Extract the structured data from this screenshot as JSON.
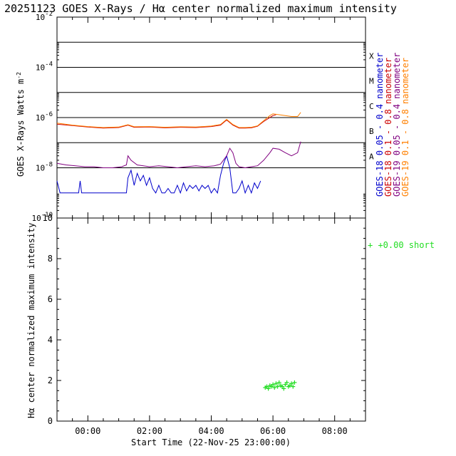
{
  "title": "20251123 GOES X-Rays / Hα center normalized maximum intensity",
  "chart_data": [
    {
      "type": "line",
      "panel": "top",
      "yscale": "log",
      "ylabel_main": "GOES X-Rays Watts m",
      "ylabel_sup": "-2",
      "ylim": [
        1e-10,
        0.01
      ],
      "yticks": [
        {
          "base": "10",
          "exp": "-10",
          "value": 1e-10
        },
        {
          "base": "10",
          "exp": "-8",
          "value": 1e-08
        },
        {
          "base": "10",
          "exp": "-6",
          "value": 1e-06
        },
        {
          "base": "10",
          "exp": "-4",
          "value": 0.0001
        },
        {
          "base": "10",
          "exp": "-2",
          "value": 0.01
        }
      ],
      "flare_levels": [
        {
          "label": "A",
          "value": 1e-08
        },
        {
          "label": "B",
          "value": 1e-07
        },
        {
          "label": "C",
          "value": 1e-06
        },
        {
          "label": "M",
          "value": 1e-05
        },
        {
          "label": "X",
          "value": 0.0001
        }
      ],
      "extra_lines": [
        0.001
      ],
      "legend": [
        {
          "label": "GOES-18  0.05 - 0.4 nanometer",
          "color": "#0000cc"
        },
        {
          "label": "GOES-18  0.1 - 0.8 nanometer",
          "color": "#cc0000"
        },
        {
          "label": "GOES-19  0.05 - 0.4 nanometer",
          "color": "#800080"
        },
        {
          "label": "GOES-19  0.1 - 0.8 nanometer",
          "color": "#ff8000"
        }
      ],
      "series": [
        {
          "name": "GOES-18 0.05-0.4 nm",
          "color": "#0000cc",
          "x": [
            -1.0,
            -0.9,
            -0.3,
            -0.25,
            -0.2,
            -0.1,
            0.5,
            1.0,
            1.1,
            1.2,
            1.25,
            1.3,
            1.4,
            1.5,
            1.6,
            1.7,
            1.8,
            1.9,
            2.0,
            2.1,
            2.2,
            2.3,
            2.4,
            2.5,
            2.6,
            2.7,
            2.8,
            2.9,
            3.0,
            3.1,
            3.2,
            3.3,
            3.4,
            3.5,
            3.6,
            3.7,
            3.8,
            3.9,
            4.0,
            4.1,
            4.2,
            4.3,
            4.4,
            4.5,
            4.6,
            4.7,
            4.8,
            4.9,
            5.0,
            5.1,
            5.2,
            5.3,
            5.4,
            5.5,
            5.6
          ],
          "y": [
            3e-09,
            1e-09,
            1e-09,
            3e-09,
            1e-09,
            1e-09,
            1e-09,
            1e-09,
            1e-09,
            1e-09,
            1e-09,
            4e-09,
            8e-09,
            2e-09,
            6e-09,
            3e-09,
            5e-09,
            2e-09,
            4e-09,
            1.5e-09,
            1e-09,
            2e-09,
            1e-09,
            1e-09,
            1.5e-09,
            1e-09,
            1e-09,
            2e-09,
            1e-09,
            2.5e-09,
            1.2e-09,
            2e-09,
            1.5e-09,
            2e-09,
            1.2e-09,
            2e-09,
            1.5e-09,
            2e-09,
            1e-09,
            1.5e-09,
            1e-09,
            5e-09,
            1.5e-08,
            3e-08,
            1e-08,
            1e-09,
            1e-09,
            1.5e-09,
            3e-09,
            1e-09,
            2e-09,
            1e-09,
            2.5e-09,
            1.5e-09,
            3e-09
          ]
        },
        {
          "name": "GOES-18 0.1-0.8 nm",
          "color": "#cc0000",
          "x": [
            -1.0,
            -0.5,
            0.0,
            0.5,
            1.0,
            1.3,
            1.5,
            2.0,
            2.5,
            3.0,
            3.5,
            4.0,
            4.3,
            4.5,
            4.7,
            4.9,
            5.1,
            5.3,
            5.5,
            5.7,
            6.0,
            6.1
          ],
          "y": [
            5.5e-07,
            4.8e-07,
            4.2e-07,
            3.8e-07,
            4e-07,
            5e-07,
            4.1e-07,
            4.2e-07,
            3.9e-07,
            4.1e-07,
            4e-07,
            4.4e-07,
            5e-07,
            8e-07,
            5e-07,
            3.8e-07,
            3.8e-07,
            3.9e-07,
            4.5e-07,
            7e-07,
            1.2e-06,
            1.3e-06
          ]
        },
        {
          "name": "GOES-19 0.05-0.4 nm",
          "color": "#800080",
          "x": [
            -1.0,
            -0.7,
            -0.4,
            -0.1,
            0.2,
            0.5,
            0.8,
            1.1,
            1.25,
            1.3,
            1.4,
            1.6,
            1.8,
            2.0,
            2.3,
            2.6,
            2.9,
            3.2,
            3.5,
            3.8,
            4.1,
            4.3,
            4.5,
            4.6,
            4.7,
            4.8,
            4.9,
            5.1,
            5.3,
            5.5,
            5.7,
            5.9,
            6.0,
            6.2,
            6.4,
            6.6,
            6.8,
            6.9
          ],
          "y": [
            1.5e-08,
            1.3e-08,
            1.2e-08,
            1.1e-08,
            1.1e-08,
            1e-08,
            1e-08,
            1.1e-08,
            1.3e-08,
            3e-08,
            2e-08,
            1.3e-08,
            1.2e-08,
            1.1e-08,
            1.2e-08,
            1.1e-08,
            1e-08,
            1.1e-08,
            1.2e-08,
            1.1e-08,
            1.2e-08,
            1.4e-08,
            3e-08,
            6e-08,
            4e-08,
            1.5e-08,
            1.1e-08,
            1e-08,
            1.1e-08,
            1.2e-08,
            2e-08,
            4e-08,
            6e-08,
            5.5e-08,
            4e-08,
            3e-08,
            4e-08,
            1.1e-07
          ]
        },
        {
          "name": "GOES-19 0.1-0.8 nm",
          "color": "#ff8000",
          "x": [
            -1.0,
            -0.5,
            0.0,
            0.5,
            1.0,
            1.3,
            1.5,
            2.0,
            2.5,
            3.0,
            3.5,
            4.0,
            4.3,
            4.5,
            4.7,
            4.9,
            5.1,
            5.3,
            5.5,
            5.7,
            5.9,
            6.0,
            6.2,
            6.4,
            6.6,
            6.8,
            6.9
          ],
          "y": [
            6e-07,
            5e-07,
            4.4e-07,
            4e-07,
            4.2e-07,
            5.2e-07,
            4.3e-07,
            4.4e-07,
            4.1e-07,
            4.3e-07,
            4.2e-07,
            4.6e-07,
            5.3e-07,
            8.5e-07,
            5.3e-07,
            4e-07,
            4e-07,
            4.1e-07,
            4.7e-07,
            7.5e-07,
            1.2e-06,
            1.4e-06,
            1.3e-06,
            1.2e-06,
            1.1e-06,
            1.1e-06,
            1.6e-06
          ]
        }
      ]
    },
    {
      "type": "scatter",
      "panel": "bottom",
      "ylabel": "Hα center normalized maximum intensity",
      "xlabel": "Start Time (22-Nov-25 23:00:00)",
      "ylim": [
        0,
        10
      ],
      "yticks": [
        "0",
        "2",
        "4",
        "6",
        "8",
        "10"
      ],
      "xlim": [
        -1.0,
        9.0
      ],
      "xticks": [
        {
          "label": "00:00",
          "value": 0
        },
        {
          "label": "02:00",
          "value": 2
        },
        {
          "label": "04:00",
          "value": 4
        },
        {
          "label": "06:00",
          "value": 6
        },
        {
          "label": "08:00",
          "value": 8
        }
      ],
      "marker": "+",
      "color": "#22dd22",
      "annotation": "+  +0.00 short",
      "series": [
        {
          "name": "H-alpha",
          "x": [
            5.75,
            5.8,
            5.85,
            5.9,
            5.95,
            6.0,
            6.05,
            6.1,
            6.15,
            6.2,
            6.25,
            6.3,
            6.35,
            6.4,
            6.45,
            6.5,
            6.55,
            6.6,
            6.65,
            6.7
          ],
          "y": [
            1.65,
            1.7,
            1.6,
            1.75,
            1.7,
            1.8,
            1.65,
            1.85,
            1.7,
            1.9,
            1.75,
            1.7,
            1.6,
            1.8,
            1.9,
            1.7,
            1.75,
            1.85,
            1.7,
            1.9
          ]
        }
      ]
    }
  ]
}
